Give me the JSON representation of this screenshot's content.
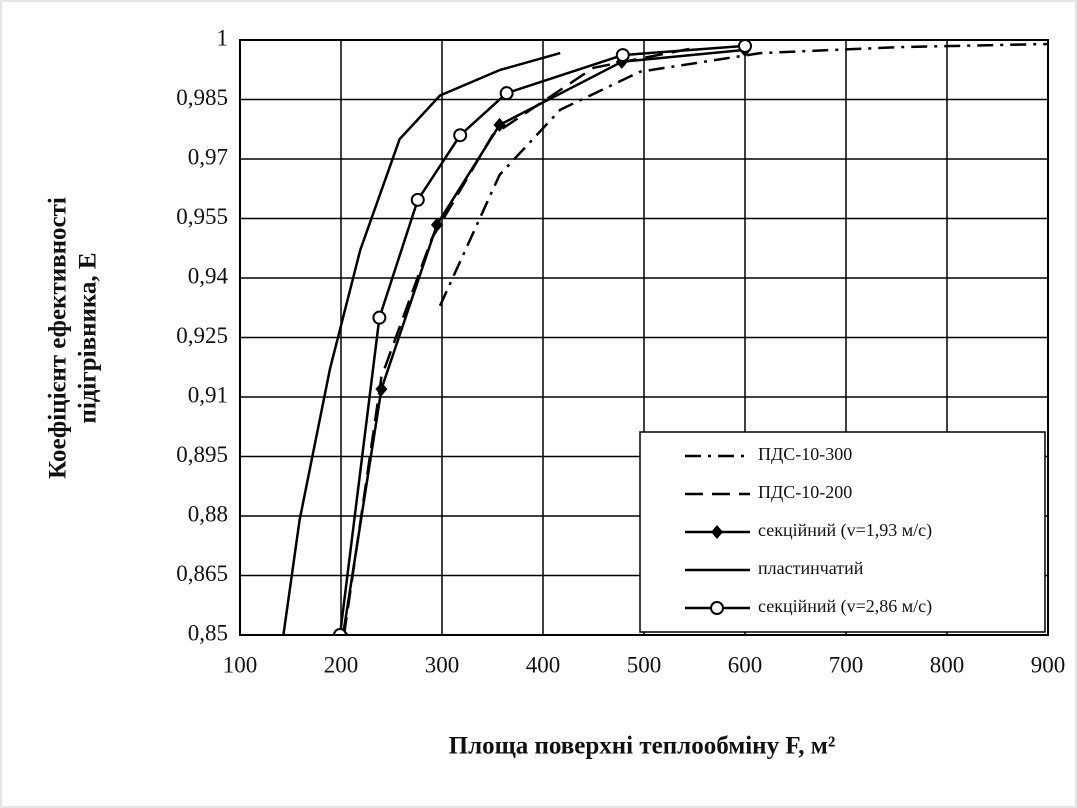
{
  "chart_data": {
    "type": "line",
    "y_label": [
      "Коефіцієнт ефективності",
      "підігрівника, Е"
    ],
    "x_label": "Площа поверхні теплообміну F, м²",
    "xlim": [
      100,
      900
    ],
    "xticks": [
      100,
      200,
      300,
      400,
      500,
      600,
      700,
      800,
      900
    ],
    "ylim": [
      0.85,
      1
    ],
    "yticks": [
      {
        "value": 0.85,
        "label": "0,85"
      },
      {
        "value": 0.865,
        "label": "0,865"
      },
      {
        "value": 0.88,
        "label": "0,88"
      },
      {
        "value": 0.895,
        "label": "0,895"
      },
      {
        "value": 0.91,
        "label": "0,91"
      },
      {
        "value": 0.925,
        "label": "0,925"
      },
      {
        "value": 0.94,
        "label": "0,94"
      },
      {
        "value": 0.955,
        "label": "0,955"
      },
      {
        "value": 0.97,
        "label": "0,97"
      },
      {
        "value": 0.985,
        "label": "0,985"
      },
      1
    ],
    "grid": true,
    "legend": "lower right",
    "series": [
      {
        "name": "ПДС-10-300",
        "color": "#000000",
        "dash": "dashdot",
        "marker": "none",
        "x": [
          298,
          357,
          417,
          496,
          615,
          753,
          900
        ],
        "values": [
          0.933,
          0.966,
          0.9824,
          0.992,
          0.9967,
          0.9982,
          0.999
        ]
      },
      {
        "name": "ПДС-10-200",
        "color": "#000000",
        "dash": "dash",
        "marker": "none",
        "x": [
          203,
          240,
          290,
          350,
          450,
          550
        ],
        "values": [
          0.85,
          0.915,
          0.95,
          0.976,
          0.993,
          0.998
        ]
      },
      {
        "name": "секційний (v=1,93 м/с)",
        "color": "#000000",
        "dash": "solid",
        "marker": "diamond",
        "x": [
          202,
          240,
          295,
          357,
          478,
          600
        ],
        "values": [
          0.85,
          0.912,
          0.9534,
          0.9786,
          0.9945,
          0.9975
        ]
      },
      {
        "name": "пластинчатий",
        "color": "#000000",
        "dash": "solid",
        "marker": "none",
        "x": [
          143,
          159,
          189,
          219,
          258,
          298,
          357,
          417
        ],
        "values": [
          0.85,
          0.879,
          0.917,
          0.947,
          0.975,
          0.986,
          0.9924,
          0.9967
        ]
      },
      {
        "name": "секційний (v=2,86 м/с)",
        "color": "#000000",
        "dash": "solid",
        "marker": "circle",
        "x": [
          199,
          238,
          276,
          318,
          364,
          479,
          600
        ],
        "values": [
          0.85,
          0.93,
          0.9597,
          0.976,
          0.9866,
          0.9962,
          0.9985
        ]
      }
    ]
  }
}
